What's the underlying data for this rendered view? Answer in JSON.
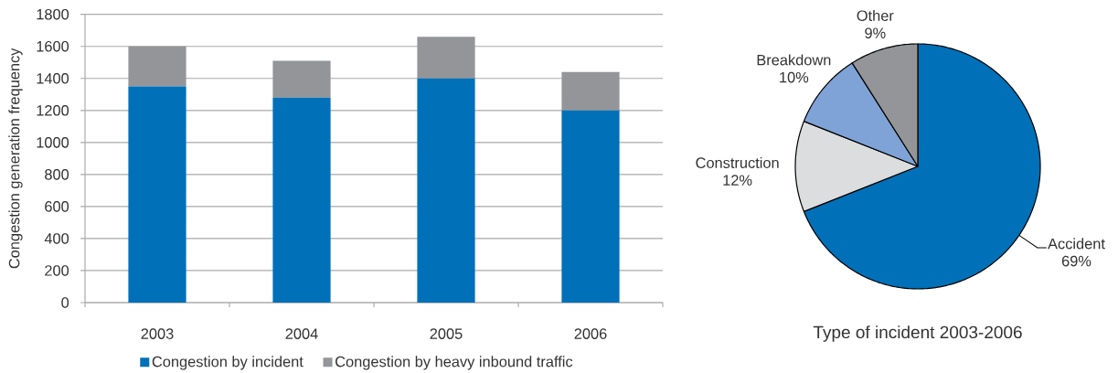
{
  "chart_data": [
    {
      "type": "bar",
      "categories": [
        "2003",
        "2004",
        "2005",
        "2006"
      ],
      "series": [
        {
          "name": "Congestion by incident",
          "color": "#0070b8",
          "values": [
            1350,
            1280,
            1400,
            1200
          ]
        },
        {
          "name": "Congestion by heavy inbound traffic",
          "color": "#939598",
          "values": [
            250,
            230,
            260,
            240
          ]
        }
      ],
      "stacked": true,
      "ylabel": "Congestion generation frequency",
      "ylim": [
        0,
        1800
      ],
      "yticks": [
        0,
        200,
        400,
        600,
        800,
        1000,
        1200,
        1400,
        1600,
        1800
      ],
      "grid": "y",
      "legend": "bottom"
    },
    {
      "type": "pie",
      "title": "Type of incident 2003-2006",
      "categories": [
        "Accident",
        "Construction",
        "Breakdown",
        "Other"
      ],
      "values": [
        69,
        12,
        10,
        9
      ],
      "colors": [
        "#0070b8",
        "#dcdddf",
        "#7fa3d6",
        "#939598"
      ],
      "value_labels": [
        "69%",
        "12%",
        "10%",
        "9%"
      ]
    }
  ]
}
